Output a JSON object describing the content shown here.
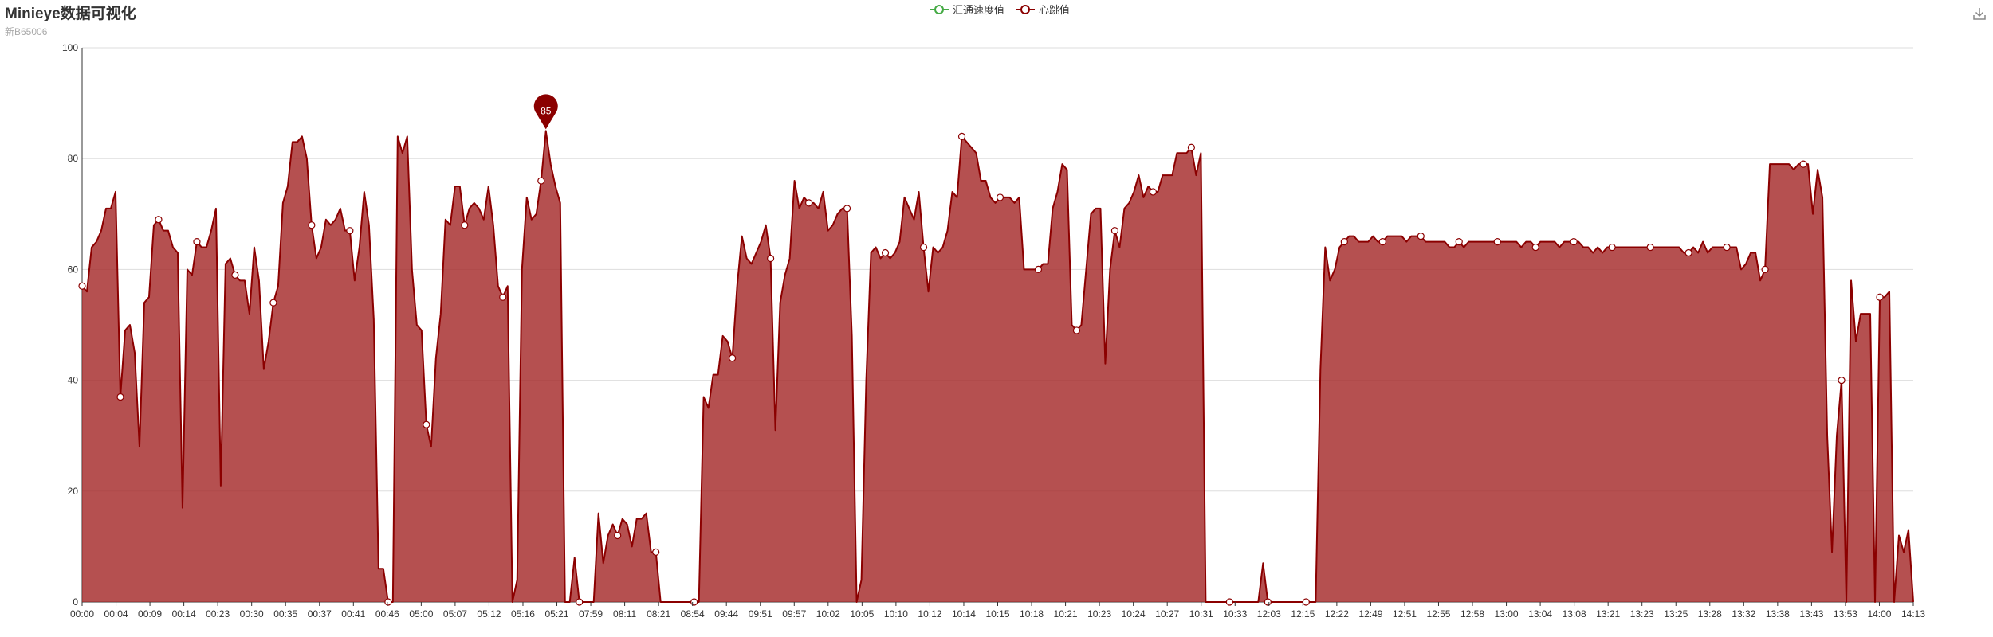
{
  "header": {
    "title": "Minieye数据可视化",
    "subtitle": "新B65006"
  },
  "toolbar": {
    "download_icon": "download-icon"
  },
  "colors": {
    "area_fill": "#a52a2a",
    "area_line": "#8b0000",
    "speed_series": "#44aa44",
    "grid": "#dddddd",
    "axis": "#333333"
  },
  "chart_data": {
    "type": "area",
    "title": "Minieye数据可视化",
    "subtitle": "新B65006",
    "ylim": [
      0,
      100
    ],
    "yticks": [
      0,
      20,
      40,
      60,
      80,
      100
    ],
    "grid": true,
    "legend_position": "top-center",
    "x_labels": [
      "00:00",
      "00:04",
      "00:09",
      "00:14",
      "00:23",
      "00:30",
      "00:35",
      "00:37",
      "00:41",
      "00:46",
      "05:00",
      "05:07",
      "05:12",
      "05:16",
      "05:21",
      "07:59",
      "08:11",
      "08:21",
      "08:54",
      "09:44",
      "09:51",
      "09:57",
      "10:02",
      "10:05",
      "10:10",
      "10:12",
      "10:14",
      "10:15",
      "10:18",
      "10:21",
      "10:23",
      "10:24",
      "10:27",
      "10:31",
      "10:33",
      "12:03",
      "12:15",
      "12:22",
      "12:49",
      "12:51",
      "12:55",
      "12:58",
      "13:00",
      "13:04",
      "13:08",
      "13:21",
      "13:23",
      "13:25",
      "13:28",
      "13:32",
      "13:38",
      "13:43",
      "13:53",
      "14:00",
      "14:13"
    ],
    "series": [
      {
        "name": "汇通速度值",
        "values": []
      },
      {
        "name": "心跳值",
        "values": [
          57,
          56,
          64,
          65,
          67,
          71,
          71,
          74,
          37,
          49,
          50,
          45,
          28,
          54,
          55,
          68,
          69,
          67,
          67,
          64,
          63,
          17,
          60,
          59,
          65,
          64,
          64,
          67,
          71,
          21,
          61,
          62,
          59,
          58,
          58,
          52,
          64,
          58,
          42,
          47,
          54,
          57,
          72,
          75,
          83,
          83,
          84,
          80,
          68,
          62,
          64,
          69,
          68,
          69,
          71,
          67,
          67,
          58,
          64,
          74,
          68,
          51,
          6,
          6,
          0,
          0,
          84,
          81,
          84,
          60,
          50,
          49,
          32,
          28,
          44,
          52,
          69,
          68,
          75,
          75,
          68,
          71,
          72,
          71,
          69,
          75,
          68,
          57,
          55,
          57,
          0,
          4,
          60,
          73,
          69,
          70,
          76,
          85,
          79,
          75,
          72,
          0,
          0,
          8,
          0,
          0,
          0,
          0,
          16,
          7,
          12,
          14,
          12,
          15,
          14,
          10,
          15,
          15,
          16,
          9,
          9,
          0,
          0,
          0,
          0,
          0,
          0,
          0,
          0,
          0,
          37,
          35,
          41,
          41,
          48,
          47,
          44,
          57,
          66,
          62,
          61,
          63,
          65,
          68,
          62,
          31,
          54,
          59,
          62,
          76,
          71,
          73,
          72,
          72,
          71,
          74,
          67,
          68,
          70,
          71,
          71,
          48,
          0,
          4,
          40,
          63,
          64,
          62,
          63,
          62,
          63,
          65,
          73,
          71,
          69,
          74,
          64,
          56,
          64,
          63,
          64,
          67,
          74,
          73,
          84,
          83,
          82,
          81,
          76,
          76,
          73,
          72,
          73,
          73,
          73,
          72,
          73,
          60,
          60,
          60,
          60,
          61,
          61,
          71,
          74,
          79,
          78,
          50,
          49,
          50,
          60,
          70,
          71,
          71,
          43,
          60,
          67,
          64,
          71,
          72,
          74,
          77,
          73,
          75,
          74,
          74,
          77,
          77,
          77,
          81,
          81,
          81,
          82,
          77,
          81,
          0,
          0,
          0,
          0,
          0,
          0,
          0,
          0,
          0,
          0,
          0,
          0,
          7,
          0,
          0,
          0,
          0,
          0,
          0,
          0,
          0,
          0,
          0,
          0,
          42,
          64,
          58,
          60,
          64,
          65,
          66,
          66,
          65,
          65,
          65,
          66,
          65,
          65,
          66,
          66,
          66,
          66,
          65,
          66,
          66,
          66,
          65,
          65,
          65,
          65,
          65,
          64,
          64,
          65,
          64,
          65,
          65,
          65,
          65,
          65,
          65,
          65,
          65,
          65,
          65,
          65,
          64,
          65,
          65,
          64,
          65,
          65,
          65,
          65,
          64,
          65,
          65,
          65,
          65,
          64,
          64,
          63,
          64,
          63,
          64,
          64,
          64,
          64,
          64,
          64,
          64,
          64,
          64,
          64,
          64,
          64,
          64,
          64,
          64,
          64,
          63,
          63,
          64,
          63,
          65,
          63,
          64,
          64,
          64,
          64,
          64,
          64,
          60,
          61,
          63,
          63,
          58,
          60,
          79,
          79,
          79,
          79,
          79,
          78,
          79,
          79,
          79,
          70,
          78,
          73,
          30,
          9,
          30,
          40,
          0,
          58,
          47,
          52,
          52,
          52,
          0,
          55,
          55,
          56,
          0,
          12,
          9,
          13,
          0
        ]
      }
    ],
    "peak_marker": {
      "label": "85",
      "value": 85
    }
  }
}
